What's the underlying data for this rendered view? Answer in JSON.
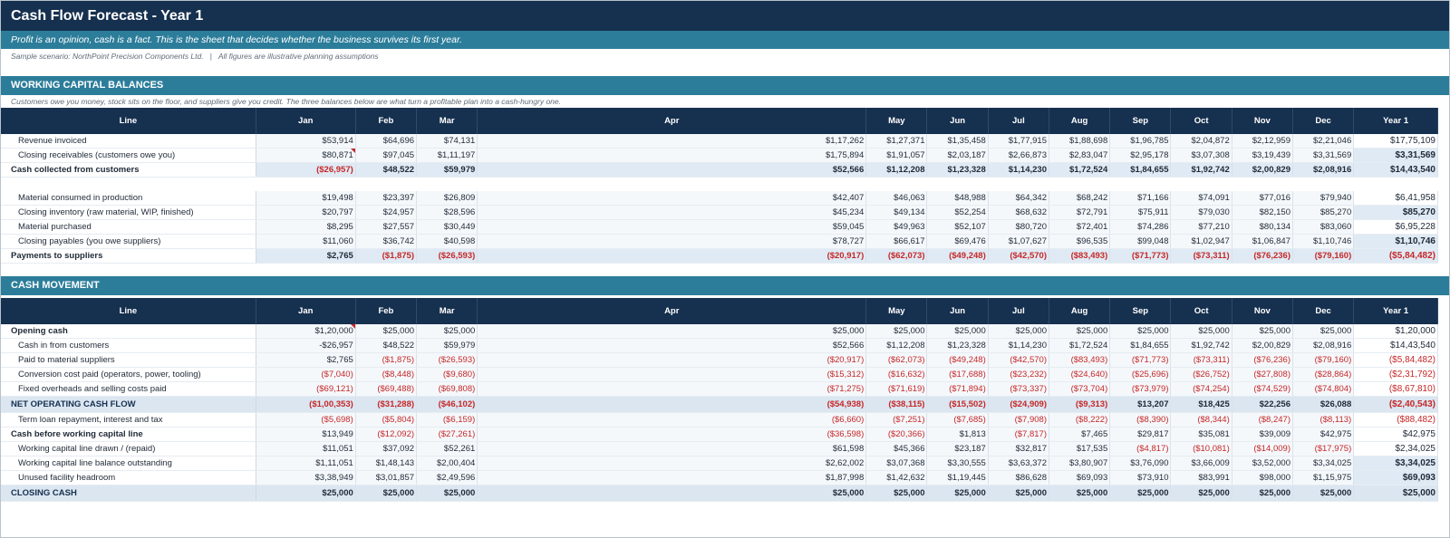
{
  "title": "Cash Flow Forecast - Year 1",
  "tagline": "Profit is an opinion, cash is a fact. This is the sheet that decides whether the business survives its first year.",
  "scenario": "Sample scenario: NorthPoint Precision Components Ltd.",
  "scenario_note": "All figures are illustrative planning assumptions",
  "columns": [
    "Line",
    "Jan",
    "Feb",
    "Mar",
    "Apr",
    "May",
    "Jun",
    "Jul",
    "Aug",
    "Sep",
    "Oct",
    "Nov",
    "Dec",
    "Year 1"
  ],
  "colors": {
    "header_navy": "#16304f",
    "accent_teal": "#2c7d9a",
    "negative_red": "#c62828"
  },
  "sections": [
    {
      "title": "WORKING CAPITAL BALANCES",
      "description": "Customers owe you money, stock sits on the floor, and suppliers give you credit. The three balances below are what turn a profitable plan into a cash-hungry one.",
      "rows": [
        {
          "label": "Revenue invoiced",
          "style": "ind",
          "values": [
            "$53,914",
            "$64,696",
            "$74,131",
            "$1,17,262",
            "$1,27,371",
            "$1,35,458",
            "$1,77,915",
            "$1,88,698",
            "$1,96,785",
            "$2,04,872",
            "$2,12,959",
            "$2,21,046",
            "$17,75,109"
          ]
        },
        {
          "label": "Closing receivables (customers owe you)",
          "style": "ind",
          "flag": true,
          "yr_hl": true,
          "values": [
            "$80,871",
            "$97,045",
            "$1,11,197",
            "$1,75,894",
            "$1,91,057",
            "$2,03,187",
            "$2,66,873",
            "$2,83,047",
            "$2,95,178",
            "$3,07,308",
            "$3,19,439",
            "$3,31,569",
            "$3,31,569"
          ]
        },
        {
          "label": "Cash collected from customers",
          "style": "bold",
          "values": [
            "($26,957)",
            "$48,522",
            "$59,979",
            "$52,566",
            "$1,12,208",
            "$1,23,328",
            "$1,14,230",
            "$1,72,524",
            "$1,84,655",
            "$1,92,742",
            "$2,00,829",
            "$2,08,916",
            "$14,43,540"
          ]
        },
        {
          "label": "",
          "style": "spacer",
          "values": []
        },
        {
          "label": "Material consumed in production",
          "style": "ind",
          "values": [
            "$19,498",
            "$23,397",
            "$26,809",
            "$42,407",
            "$46,063",
            "$48,988",
            "$64,342",
            "$68,242",
            "$71,166",
            "$74,091",
            "$77,016",
            "$79,940",
            "$6,41,958"
          ]
        },
        {
          "label": "Closing inventory (raw material, WIP, finished)",
          "style": "ind",
          "yr_hl": true,
          "values": [
            "$20,797",
            "$24,957",
            "$28,596",
            "$45,234",
            "$49,134",
            "$52,254",
            "$68,632",
            "$72,791",
            "$75,911",
            "$79,030",
            "$82,150",
            "$85,270",
            "$85,270"
          ]
        },
        {
          "label": "Material purchased",
          "style": "ind",
          "values": [
            "$8,295",
            "$27,557",
            "$30,449",
            "$59,045",
            "$49,963",
            "$52,107",
            "$80,720",
            "$72,401",
            "$74,286",
            "$77,210",
            "$80,134",
            "$83,060",
            "$6,95,228"
          ]
        },
        {
          "label": "Closing payables (you owe suppliers)",
          "style": "ind",
          "yr_hl": true,
          "values": [
            "$11,060",
            "$36,742",
            "$40,598",
            "$78,727",
            "$66,617",
            "$69,476",
            "$1,07,627",
            "$96,535",
            "$99,048",
            "$1,02,947",
            "$1,06,847",
            "$1,10,746",
            "$1,10,746"
          ]
        },
        {
          "label": "Payments to suppliers",
          "style": "bold",
          "values": [
            "$2,765",
            "($1,875)",
            "($26,593)",
            "($20,917)",
            "($62,073)",
            "($49,248)",
            "($42,570)",
            "($83,493)",
            "($71,773)",
            "($73,311)",
            "($76,236)",
            "($79,160)",
            "($5,84,482)"
          ]
        }
      ]
    },
    {
      "title": "CASH MOVEMENT",
      "description": "",
      "rows": [
        {
          "label": "Opening cash",
          "style": "plainbold",
          "flag": true,
          "values": [
            "$1,20,000",
            "$25,000",
            "$25,000",
            "$25,000",
            "$25,000",
            "$25,000",
            "$25,000",
            "$25,000",
            "$25,000",
            "$25,000",
            "$25,000",
            "$25,000",
            "$1,20,000"
          ]
        },
        {
          "label": "Cash in from customers",
          "style": "ind",
          "values": [
            "-$26,957",
            "$48,522",
            "$59,979",
            "$52,566",
            "$1,12,208",
            "$1,23,328",
            "$1,14,230",
            "$1,72,524",
            "$1,84,655",
            "$1,92,742",
            "$2,00,829",
            "$2,08,916",
            "$14,43,540"
          ]
        },
        {
          "label": "Paid to material suppliers",
          "style": "ind",
          "values": [
            "$2,765",
            "($1,875)",
            "($26,593)",
            "($20,917)",
            "($62,073)",
            "($49,248)",
            "($42,570)",
            "($83,493)",
            "($71,773)",
            "($73,311)",
            "($76,236)",
            "($79,160)",
            "($5,84,482)"
          ]
        },
        {
          "label": "Conversion cost paid (operators, power, tooling)",
          "style": "ind",
          "values": [
            "($7,040)",
            "($8,448)",
            "($9,680)",
            "($15,312)",
            "($16,632)",
            "($17,688)",
            "($23,232)",
            "($24,640)",
            "($25,696)",
            "($26,752)",
            "($27,808)",
            "($28,864)",
            "($2,31,792)"
          ]
        },
        {
          "label": "Fixed overheads and selling costs paid",
          "style": "ind",
          "values": [
            "($69,121)",
            "($69,488)",
            "($69,808)",
            "($71,275)",
            "($71,619)",
            "($71,894)",
            "($73,337)",
            "($73,704)",
            "($73,979)",
            "($74,254)",
            "($74,529)",
            "($74,804)",
            "($8,67,810)"
          ]
        },
        {
          "label": "NET OPERATING CASH FLOW",
          "style": "major",
          "values": [
            "($1,00,353)",
            "($31,288)",
            "($46,102)",
            "($54,938)",
            "($38,115)",
            "($15,502)",
            "($24,909)",
            "($9,313)",
            "$13,207",
            "$18,425",
            "$22,256",
            "$26,088",
            "($2,40,543)"
          ]
        },
        {
          "label": "Term loan repayment, interest and tax",
          "style": "ind",
          "values": [
            "($5,698)",
            "($5,804)",
            "($6,159)",
            "($6,660)",
            "($7,251)",
            "($7,685)",
            "($7,908)",
            "($8,222)",
            "($8,390)",
            "($8,344)",
            "($8,247)",
            "($8,113)",
            "($88,482)"
          ]
        },
        {
          "label": "Cash before working capital line",
          "style": "plainbold",
          "values": [
            "$13,949",
            "($12,092)",
            "($27,261)",
            "($36,598)",
            "($20,366)",
            "$1,813",
            "($7,817)",
            "$7,465",
            "$29,817",
            "$35,081",
            "$39,009",
            "$42,975",
            "$42,975"
          ]
        },
        {
          "label": "Working capital line drawn / (repaid)",
          "style": "ind",
          "values": [
            "$11,051",
            "$37,092",
            "$52,261",
            "$61,598",
            "$45,366",
            "$23,187",
            "$32,817",
            "$17,535",
            "($4,817)",
            "($10,081)",
            "($14,009)",
            "($17,975)",
            "$2,34,025"
          ]
        },
        {
          "label": "Working capital line balance outstanding",
          "style": "ind",
          "yr_hl": true,
          "values": [
            "$1,11,051",
            "$1,48,143",
            "$2,00,404",
            "$2,62,002",
            "$3,07,368",
            "$3,30,555",
            "$3,63,372",
            "$3,80,907",
            "$3,76,090",
            "$3,66,009",
            "$3,52,000",
            "$3,34,025",
            "$3,34,025"
          ]
        },
        {
          "label": "Unused facility headroom",
          "style": "ind",
          "yr_hl": true,
          "values": [
            "$3,38,949",
            "$3,01,857",
            "$2,49,596",
            "$1,87,998",
            "$1,42,632",
            "$1,19,445",
            "$86,628",
            "$69,093",
            "$73,910",
            "$83,991",
            "$98,000",
            "$1,15,975",
            "$69,093"
          ]
        },
        {
          "label": "CLOSING CASH",
          "style": "closing",
          "values": [
            "$25,000",
            "$25,000",
            "$25,000",
            "$25,000",
            "$25,000",
            "$25,000",
            "$25,000",
            "$25,000",
            "$25,000",
            "$25,000",
            "$25,000",
            "$25,000",
            "$25,000"
          ]
        }
      ]
    }
  ]
}
